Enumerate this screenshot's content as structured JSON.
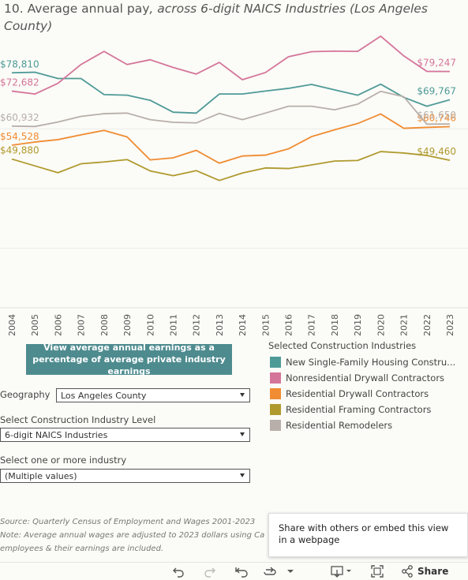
{
  "title": {
    "main": "10. Average annual pay",
    "sub": ", across 6-digit NAICS Industries (Los Angeles County)"
  },
  "percentage_button": "View average annual earnings as a percentage of average private industry earnings",
  "legend": {
    "title": "Selected Construction Industries",
    "items": [
      {
        "label": "New Single-Family Housing Constru...",
        "color": "#4e9a97"
      },
      {
        "label": "Nonresidential Drywall Contractors",
        "color": "#d4759a"
      },
      {
        "label": "Residential Drywall Contractors",
        "color": "#f08c32"
      },
      {
        "label": "Residential Framing Contractors",
        "color": "#b09a2e"
      },
      {
        "label": "Residential Remodelers",
        "color": "#b8afaa"
      }
    ]
  },
  "filters": {
    "geography_label": "Geography",
    "geography_value": "Los Angeles County",
    "industry_level_label": "Select Construction Industry Level",
    "industry_level_value": "6-digit NAICS Industries",
    "industry_label": "Select one or more industry",
    "industry_value": "(Multiple values)"
  },
  "notes": {
    "source": "Source: Quarterly Census of Employment and Wages 2001-2023",
    "note": "Note: Average annual wages are adjusted to 2023 dollars using Ca",
    "note2": "employees & their earnings are included."
  },
  "tooltip": "Share with others or embed this view in a webpage",
  "toolbar": {
    "share": "Share",
    "undo_icon": "undo-icon",
    "redo_icon": "redo-icon",
    "revert_icon": "revert-icon",
    "refresh_icon": "refresh-icon",
    "download_icon": "download-icon",
    "fullscreen_icon": "fullscreen-icon",
    "share_icon": "share-icon"
  },
  "chart_data": {
    "type": "line",
    "x": [
      2004,
      2005,
      2006,
      2007,
      2008,
      2009,
      2010,
      2011,
      2012,
      2013,
      2014,
      2015,
      2016,
      2017,
      2018,
      2019,
      2020,
      2021,
      2022,
      2023
    ],
    "ylim": [
      0,
      90000
    ],
    "grid": true,
    "series": [
      {
        "name": "New Single-Family Housing Constru...",
        "color": "#4e9a97",
        "values": [
          78810,
          79000,
          76900,
          76900,
          71500,
          71300,
          69600,
          65600,
          65300,
          71700,
          71700,
          72700,
          73600,
          74900,
          73100,
          71300,
          75000,
          70600,
          67600,
          69767
        ],
        "labels": [
          {
            "i": 0,
            "text": "$78,810",
            "pos": "start"
          },
          {
            "i": 19,
            "text": "$69,767",
            "pos": "end"
          }
        ]
      },
      {
        "name": "Nonresidential Drywall Contractors",
        "color": "#d4759a",
        "values": [
          72682,
          71700,
          75300,
          81600,
          86000,
          81600,
          83200,
          80600,
          78400,
          82300,
          76500,
          78900,
          84200,
          85900,
          86100,
          86000,
          91100,
          84500,
          79300,
          79247
        ],
        "labels": [
          {
            "i": 0,
            "text": "$72,682",
            "pos": "start"
          },
          {
            "i": 19,
            "text": "$79,247",
            "pos": "end"
          }
        ]
      },
      {
        "name": "Residential Drywall Contractors",
        "color": "#f08c32",
        "values": [
          54528,
          55600,
          56400,
          58000,
          59500,
          57300,
          49600,
          50300,
          52800,
          48500,
          50900,
          51200,
          53300,
          57400,
          59700,
          61800,
          65000,
          60200,
          60500,
          60746
        ],
        "labels": [
          {
            "i": 0,
            "text": "$54,528",
            "pos": "start"
          },
          {
            "i": 19,
            "text": "$60,746",
            "pos": "end"
          }
        ]
      },
      {
        "name": "Residential Framing Contractors",
        "color": "#b09a2e",
        "values": [
          49880,
          47600,
          45300,
          48300,
          48900,
          49700,
          45900,
          44300,
          46000,
          42700,
          45200,
          46900,
          46700,
          47900,
          49200,
          49400,
          52400,
          51900,
          51100,
          49460
        ],
        "labels": [
          {
            "i": 0,
            "text": "$49,880",
            "pos": "start"
          },
          {
            "i": 19,
            "text": "$49,460",
            "pos": "end"
          }
        ]
      },
      {
        "name": "Residential Remodelers",
        "color": "#b8afaa",
        "values": [
          60932,
          60800,
          62300,
          64200,
          65100,
          65300,
          63100,
          62200,
          62000,
          65200,
          63100,
          65300,
          67600,
          67600,
          66400,
          68300,
          72600,
          70800,
          61600,
          61650
        ],
        "labels": [
          {
            "i": 0,
            "text": "$60,932",
            "pos": "start"
          },
          {
            "i": 19,
            "text": "$61,650",
            "pos": "end"
          }
        ]
      }
    ]
  }
}
